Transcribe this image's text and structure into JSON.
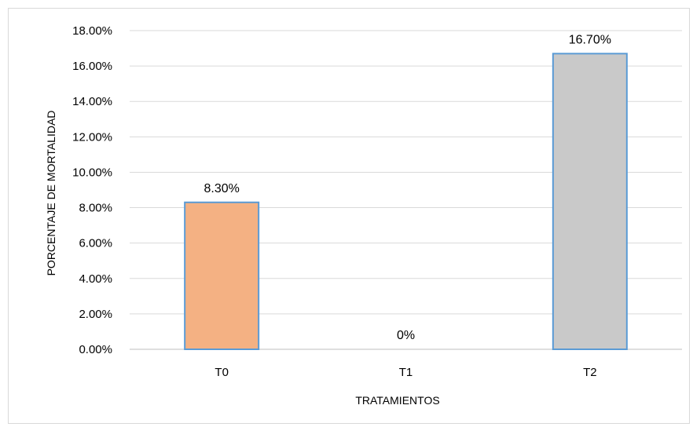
{
  "chart_data": {
    "type": "bar",
    "title": "",
    "xlabel": "TRATAMIENTOS",
    "ylabel": "PORCENTAJE DE MORTALIDAD",
    "categories": [
      "T0",
      "T1",
      "T2"
    ],
    "values": [
      8.3,
      0,
      16.7
    ],
    "data_labels": [
      "8.30%",
      "0%",
      "16.70%"
    ],
    "ylim": [
      0,
      18
    ],
    "yticks": [
      0,
      2,
      4,
      6,
      8,
      10,
      12,
      14,
      16,
      18
    ],
    "ytick_labels": [
      "0.00%",
      "2.00%",
      "4.00%",
      "6.00%",
      "8.00%",
      "10.00%",
      "12.00%",
      "14.00%",
      "16.00%",
      "18.00%"
    ],
    "bar_colors": [
      "#f4b183",
      "#f4b183",
      "#c9c9c9"
    ],
    "bar_edge_color": "#5b9bd5",
    "grid": true,
    "legend": "none"
  }
}
